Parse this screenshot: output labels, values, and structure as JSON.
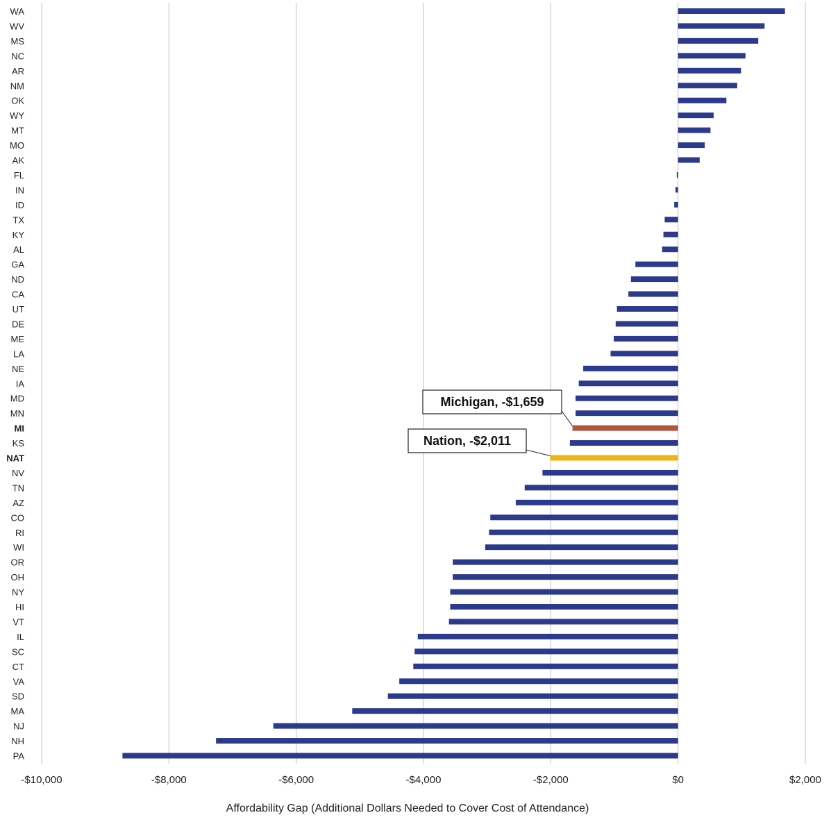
{
  "chart_data": {
    "type": "bar",
    "orientation": "horizontal",
    "categories": [
      "WA",
      "WV",
      "MS",
      "NC",
      "AR",
      "NM",
      "OK",
      "WY",
      "MT",
      "MO",
      "AK",
      "FL",
      "IN",
      "ID",
      "TX",
      "KY",
      "AL",
      "GA",
      "ND",
      "CA",
      "UT",
      "DE",
      "ME",
      "LA",
      "NE",
      "IA",
      "MD",
      "MN",
      "MI",
      "KS",
      "NAT",
      "NV",
      "TN",
      "AZ",
      "CO",
      "RI",
      "WI",
      "OR",
      "OH",
      "NY",
      "HI",
      "VT",
      "IL",
      "SC",
      "CT",
      "VA",
      "SD",
      "MA",
      "NJ",
      "NH",
      "PA"
    ],
    "values": [
      1680,
      1360,
      1260,
      1060,
      990,
      930,
      760,
      560,
      510,
      420,
      340,
      -20,
      -40,
      -60,
      -210,
      -230,
      -250,
      -670,
      -740,
      -780,
      -960,
      -980,
      -1010,
      -1060,
      -1490,
      -1560,
      -1610,
      -1610,
      -1659,
      -1700,
      -2011,
      -2130,
      -2410,
      -2550,
      -2950,
      -2970,
      -3030,
      -3540,
      -3540,
      -3580,
      -3580,
      -3600,
      -4090,
      -4140,
      -4160,
      -4380,
      -4560,
      -5120,
      -6360,
      -7260,
      -8730
    ],
    "xlim": [
      -10000,
      2000
    ],
    "xticks": [
      "-$10,000",
      "-$8,000",
      "-$6,000",
      "-$4,000",
      "-$2,000",
      "$0",
      "$2,000"
    ],
    "xlabel": "Affordability Gap (Additional Dollars Needed to Cover Cost of Attendance)",
    "ylabel": "",
    "title": "",
    "grid": "vertical",
    "bold_categories": [
      "MI",
      "NAT"
    ],
    "colors": {
      "default": "#2b3a8c",
      "MI": "#b5533c",
      "NAT": "#f0b417",
      "gridline": "#c0c0c0",
      "text": "#222222"
    },
    "annotations": [
      {
        "label": "Michigan, -$1,659",
        "target": "MI"
      },
      {
        "label": "Nation, -$2,011",
        "target": "NAT"
      }
    ]
  }
}
